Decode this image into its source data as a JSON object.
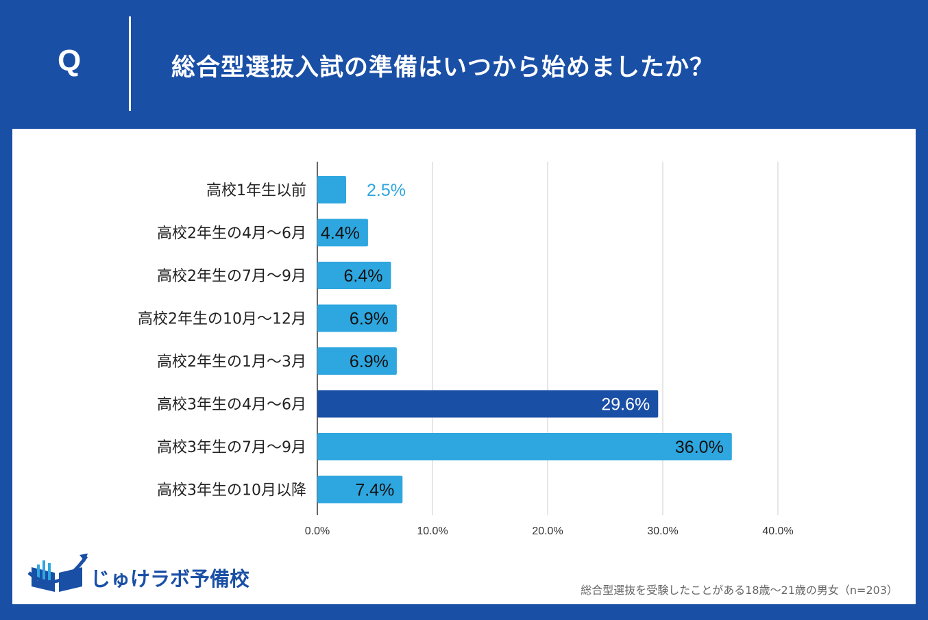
{
  "header": {
    "q_mark": "Q",
    "title": "総合型選抜入試の準備はいつから始めましたか？"
  },
  "colors": {
    "background": "#1a4fa6",
    "bar": "#2ea6df",
    "bar_highlight": "#1a4fa6",
    "grid": "#cccccc"
  },
  "chart_data": {
    "type": "bar",
    "orientation": "horizontal",
    "title": "総合型選抜入試の準備はいつから始めましたか？",
    "categories": [
      "高校1年生以前",
      "高校2年生の4月～6月",
      "高校2年生の7月～9月",
      "高校2年生の10月～12月",
      "高校2年生の1月～3月",
      "高校3年生の4月～6月",
      "高校3年生の7月～9月",
      "高校3年生の10月以降"
    ],
    "values": [
      2.5,
      4.4,
      6.4,
      6.9,
      6.9,
      29.6,
      36.0,
      7.4
    ],
    "value_labels": [
      "2.5%",
      "4.4%",
      "6.4%",
      "6.9%",
      "6.9%",
      "29.6%",
      "36.0%",
      "7.4%"
    ],
    "highlight_index": 5,
    "xlim": [
      0,
      40
    ],
    "xticks": [
      "0.0%",
      "10.0%",
      "20.0%",
      "30.0%",
      "40.0%"
    ],
    "xlabel": "",
    "ylabel": "",
    "grid": true
  },
  "logo": {
    "text": "じゅけラボ予備校"
  },
  "footnote": "総合型選抜を受験したことがある18歳～21歳の男女（n=203）"
}
